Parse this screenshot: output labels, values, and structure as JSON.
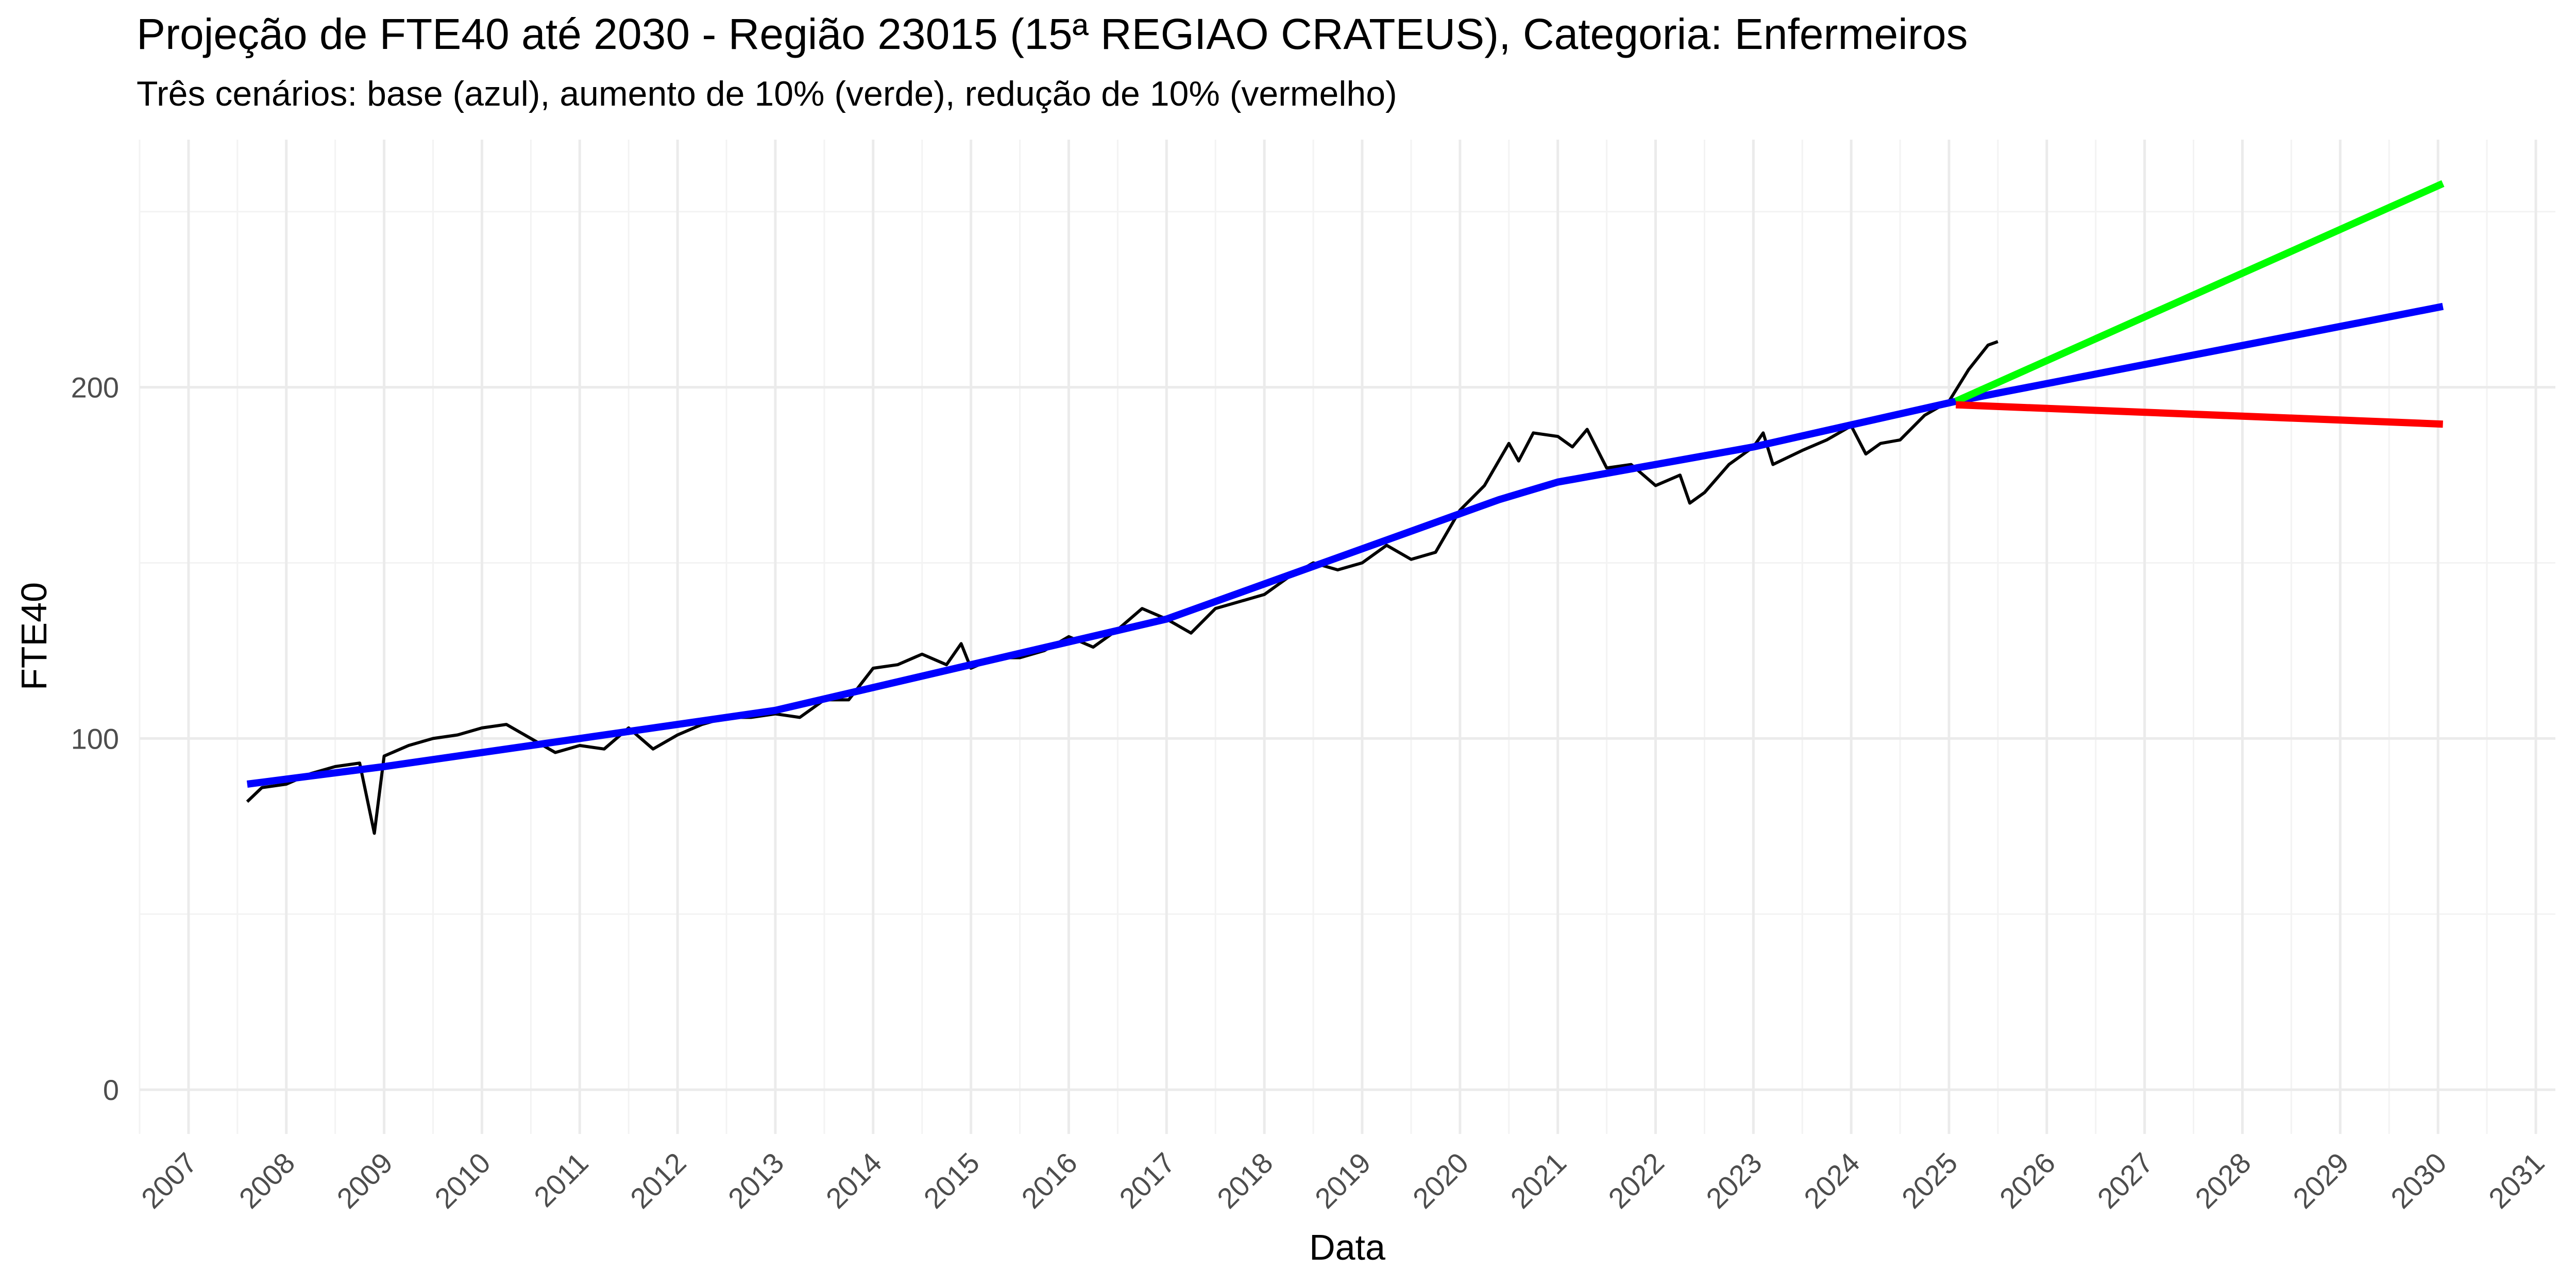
{
  "chart_data": {
    "type": "line",
    "title": "Projeção de FTE40 até 2030 - Região 23015 (15ª REGIAO CRATEUS), Categoria: Enfermeiros",
    "subtitle": "Três cenários: base (azul), aumento de 10% (verde), redução de 10% (vermelho)",
    "x_label": "Data",
    "y_label": "FTE40",
    "xlim": [
      2006.5,
      2031.2
    ],
    "ylim": [
      -12.6,
      270.5
    ],
    "xticks": [
      2007,
      2008,
      2009,
      2010,
      2011,
      2012,
      2013,
      2014,
      2015,
      2016,
      2017,
      2018,
      2019,
      2020,
      2021,
      2022,
      2023,
      2024,
      2025,
      2026,
      2027,
      2028,
      2029,
      2030,
      2031
    ],
    "minor_xticks": [
      2006.5,
      2007.5,
      2008.5,
      2009.5,
      2010.5,
      2011.5,
      2012.5,
      2013.5,
      2014.5,
      2015.5,
      2016.5,
      2017.5,
      2018.5,
      2019.5,
      2020.5,
      2021.5,
      2022.5,
      2023.5,
      2024.5,
      2025.5,
      2026.5,
      2027.5,
      2028.5,
      2029.5,
      2030.5
    ],
    "yticks": [
      0,
      100,
      200
    ],
    "minor_yticks": [
      50,
      150,
      250
    ],
    "grid": true,
    "series": [
      {
        "color": "#000000",
        "width": 6,
        "x": [
          2007.6,
          2007.75,
          2008.0,
          2008.25,
          2008.5,
          2008.75,
          2008.9,
          2009.0,
          2009.25,
          2009.5,
          2009.75,
          2010.0,
          2010.25,
          2010.5,
          2010.75,
          2011.0,
          2011.25,
          2011.5,
          2011.75,
          2012.0,
          2012.25,
          2012.5,
          2012.75,
          2013.0,
          2013.25,
          2013.5,
          2013.75,
          2014.0,
          2014.25,
          2014.5,
          2014.75,
          2014.9,
          2015.0,
          2015.25,
          2015.5,
          2015.75,
          2016.0,
          2016.25,
          2016.5,
          2016.75,
          2017.0,
          2017.25,
          2017.5,
          2017.75,
          2018.0,
          2018.25,
          2018.5,
          2018.75,
          2019.0,
          2019.25,
          2019.5,
          2019.75,
          2020.0,
          2020.25,
          2020.5,
          2020.6,
          2020.75,
          2021.0,
          2021.15,
          2021.3,
          2021.5,
          2021.75,
          2022.0,
          2022.25,
          2022.35,
          2022.5,
          2022.75,
          2023.0,
          2023.1,
          2023.2,
          2023.5,
          2023.75,
          2024.0,
          2024.15,
          2024.3,
          2024.5,
          2024.75,
          2025.0,
          2025.2,
          2025.4,
          2025.5
        ],
        "values": [
          82,
          86,
          87,
          90,
          92,
          93,
          73,
          95,
          98,
          100,
          101,
          103,
          104,
          100,
          96,
          98,
          97,
          103,
          97,
          101,
          104,
          106,
          106,
          107,
          106,
          111,
          111,
          120,
          121,
          124,
          121,
          127,
          120,
          123,
          123,
          125,
          129,
          126,
          131,
          137,
          134,
          130,
          137,
          139,
          141,
          146,
          150,
          148,
          150,
          155,
          151,
          153,
          165,
          172,
          184,
          179,
          187,
          186,
          183,
          188,
          177,
          178,
          172,
          175,
          167,
          170,
          178,
          183,
          187,
          178,
          182,
          185,
          189,
          181,
          184,
          185,
          192,
          196,
          205,
          212,
          213
        ]
      },
      {
        "color": "#0000ff",
        "width": 14,
        "x": [
          2007.6,
          2009.0,
          2011.0,
          2013.0,
          2015.0,
          2017.0,
          2019.0,
          2020.4,
          2021.0,
          2023.0,
          2025.07,
          2030.05
        ],
        "values": [
          87,
          92,
          100,
          108,
          121,
          134,
          154,
          168,
          173,
          183,
          196,
          223
        ]
      },
      {
        "color": "#00ff00",
        "width": 14,
        "x": [
          2025.07,
          2030.05
        ],
        "values": [
          196,
          258
        ]
      },
      {
        "color": "#ff0000",
        "width": 14,
        "x": [
          2025.07,
          2030.05
        ],
        "values": [
          195,
          189.5
        ]
      }
    ]
  }
}
